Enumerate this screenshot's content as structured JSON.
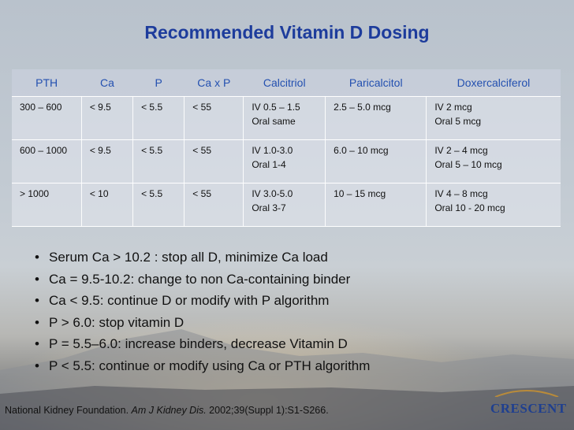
{
  "title": "Recommended Vitamin D Dosing",
  "table": {
    "header": [
      "PTH",
      "Ca",
      "P",
      "Ca x P",
      "Calcitriol",
      "Paricalcitol",
      "Doxercalciferol"
    ],
    "rows": [
      [
        [
          "300 – 600"
        ],
        [
          "< 9.5"
        ],
        [
          "< 5.5"
        ],
        [
          "< 55"
        ],
        [
          "IV 0.5 – 1.5",
          "Oral same"
        ],
        [
          "2.5 – 5.0 mcg"
        ],
        [
          "IV 2 mcg",
          "Oral 5 mcg"
        ]
      ],
      [
        [
          "600 – 1000"
        ],
        [
          "< 9.5"
        ],
        [
          "< 5.5"
        ],
        [
          "< 55"
        ],
        [
          "IV 1.0-3.0",
          "Oral 1-4"
        ],
        [
          "6.0 – 10 mcg"
        ],
        [
          "IV 2 – 4 mcg",
          "Oral 5 – 10 mcg"
        ]
      ],
      [
        [
          "> 1000"
        ],
        [
          "< 10"
        ],
        [
          "< 5.5"
        ],
        [
          "< 55"
        ],
        [
          "IV 3.0-5.0",
          "Oral 3-7"
        ],
        [
          "10 – 15 mcg"
        ],
        [
          "IV 4 – 8 mcg",
          "Oral 10 - 20 mcg"
        ]
      ]
    ]
  },
  "bullets": [
    "Serum Ca > 10.2 : stop all D, minimize Ca load",
    "Ca = 9.5-10.2: change to non Ca-containing binder",
    "Ca < 9.5: continue D or modify with P algorithm",
    "P > 6.0: stop vitamin D",
    "P = 5.5–6.0: increase binders, decrease Vitamin D",
    "P < 5.5: continue or modify using Ca or PTH algorithm"
  ],
  "citation": {
    "before": "National Kidney Foundation. ",
    "journal": "Am J Kidney Dis.",
    "after": " 2002;39(Suppl 1):S1-S266."
  },
  "logo": "CRESCENT"
}
